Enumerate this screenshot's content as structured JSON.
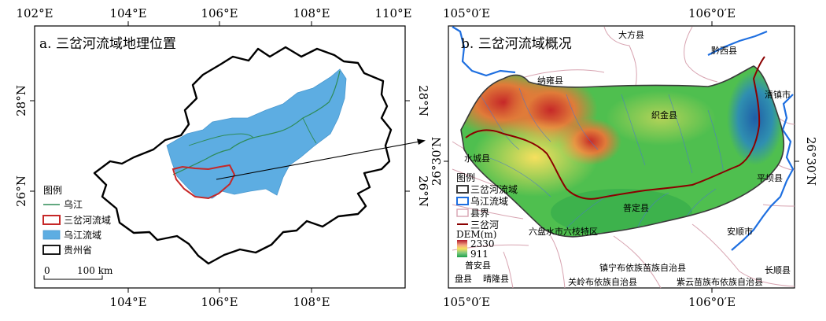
{
  "panel_a": {
    "title": "a. 三岔河流域地理位置",
    "top_ticks": [
      "102°E",
      "104°E",
      "106°E",
      "108°E",
      "110°E"
    ],
    "bottom_ticks": [
      "104°E",
      "106°E",
      "108°E"
    ],
    "left_ticks": [
      "28°N",
      "26°N"
    ],
    "right_ticks": [
      "28°N",
      "26°N"
    ],
    "legend": {
      "heading": "图例",
      "items": [
        {
          "label": "乌江",
          "symbol": "line",
          "color": "#2e8b57"
        },
        {
          "label": "三岔河流域",
          "symbol": "outline",
          "color": "#c62828"
        },
        {
          "label": "乌江流域",
          "symbol": "fill",
          "color": "#5dade2"
        },
        {
          "label": "贵州省",
          "symbol": "outline",
          "color": "#000000"
        }
      ]
    },
    "scale_bar": {
      "start": "0",
      "end": "100 km"
    }
  },
  "panel_b": {
    "title": "b. 三岔河流域概况",
    "top_ticks": [
      "105°0′E",
      "106°0′E"
    ],
    "bottom_ticks": [
      "105°0′E",
      "106°0′E"
    ],
    "left_ticks": [
      "26°30′N"
    ],
    "right_ticks": [
      "26°30′N"
    ],
    "legend": {
      "heading": "图例",
      "items": [
        {
          "label": "三岔河流域",
          "symbol": "outline",
          "color": "#3a3a3a"
        },
        {
          "label": "乌江流域",
          "symbol": "outline",
          "color": "#1e6fe0"
        },
        {
          "label": "县界",
          "symbol": "outline",
          "color": "#d7a3b0"
        },
        {
          "label": "三岔河",
          "symbol": "line",
          "color": "#8b0000"
        }
      ],
      "dem_title": "DEM(m)",
      "dem_max": "2330",
      "dem_min": "911"
    },
    "places": [
      "大方县",
      "黔西县",
      "纳雍县",
      "清镇市",
      "织金县",
      "水城县",
      "平坝县",
      "普定县",
      "六盘水市六枝特区",
      "安顺市",
      "普安县",
      "晴隆县",
      "盘县",
      "镇宁布依族苗族自治县",
      "关岭布依族自治县",
      "紫云苗族布依族自治县",
      "长顺县"
    ]
  },
  "colors": {
    "wujiang_basin": "#5dade2",
    "sanchahe_outline": "#c62828",
    "river": "#2e8b57",
    "county_boundary": "#d7a3b0",
    "wujiang_boundary": "#1e6fe0",
    "sanchahe_river": "#8b0000"
  }
}
